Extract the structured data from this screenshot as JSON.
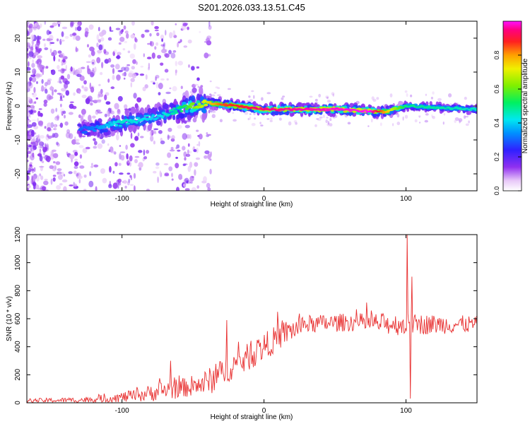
{
  "figure_title": "S201.2026.033.13.51.C45",
  "chart_data": [
    {
      "type": "heatmap",
      "title": "S201.2026.033.13.51.C45",
      "xlabel": "Height of straight line (km)",
      "ylabel": "Frequency (Hz)",
      "xlim": [
        -167,
        150
      ],
      "ylim": [
        -25,
        25
      ],
      "xticks": [
        -100,
        0,
        100
      ],
      "yticks": [
        -20,
        -10,
        0,
        10,
        20
      ],
      "grid": false,
      "colorbar": {
        "label": "Normalized spectral amplitude",
        "range": [
          0.0,
          1.0
        ],
        "ticks": [
          0.0,
          0.2,
          0.4,
          0.6,
          0.8
        ],
        "colormap": "rainbow (violet-blue-cyan-green-yellow-red-magenta)"
      },
      "ridge_frequency_hz": [
        {
          "x": -125,
          "f": -7
        },
        {
          "x": -100,
          "f": -5
        },
        {
          "x": -75,
          "f": -3
        },
        {
          "x": -60,
          "f": -1
        },
        {
          "x": -40,
          "f": 1
        },
        {
          "x": -20,
          "f": 0
        },
        {
          "x": 0,
          "f": -1
        },
        {
          "x": 50,
          "f": -1
        },
        {
          "x": 85,
          "f": -1.7
        },
        {
          "x": 100,
          "f": 0
        },
        {
          "x": 150,
          "f": -1
        }
      ],
      "ridge_amplitude": [
        {
          "x": -125,
          "a": 0.3
        },
        {
          "x": -100,
          "a": 0.45
        },
        {
          "x": -75,
          "a": 0.4
        },
        {
          "x": -60,
          "a": 0.5
        },
        {
          "x": -30,
          "a": 0.85
        },
        {
          "x": 0,
          "a": 0.95
        },
        {
          "x": 75,
          "a": 1.0
        },
        {
          "x": 100,
          "a": 0.5
        },
        {
          "x": 150,
          "a": 0.45
        }
      ]
    },
    {
      "type": "line",
      "title": "",
      "xlabel": "Height of straight line (km)",
      "ylabel": "SNR (10 * v/v)",
      "xlim": [
        -167,
        150
      ],
      "ylim": [
        0,
        1200
      ],
      "xticks": [
        -100,
        0,
        100
      ],
      "yticks": [
        0,
        200,
        400,
        600,
        800,
        1000,
        1200
      ],
      "color": "#e83030",
      "grid": false,
      "envelope": [
        {
          "x": -167,
          "base": 15,
          "spread": 30
        },
        {
          "x": -130,
          "base": 20,
          "spread": 40
        },
        {
          "x": -110,
          "base": 30,
          "spread": 60
        },
        {
          "x": -90,
          "base": 50,
          "spread": 90
        },
        {
          "x": -70,
          "base": 90,
          "spread": 150
        },
        {
          "x": -55,
          "base": 110,
          "spread": 140
        },
        {
          "x": -45,
          "base": 130,
          "spread": 170
        },
        {
          "x": -35,
          "base": 170,
          "spread": 200
        },
        {
          "x": -25,
          "base": 250,
          "spread": 200
        },
        {
          "x": -15,
          "base": 300,
          "spread": 200
        },
        {
          "x": 0,
          "base": 400,
          "spread": 200
        },
        {
          "x": 15,
          "base": 500,
          "spread": 180
        },
        {
          "x": 30,
          "base": 560,
          "spread": 130
        },
        {
          "x": 60,
          "base": 575,
          "spread": 130
        },
        {
          "x": 95,
          "base": 560,
          "spread": 160
        },
        {
          "x": 120,
          "base": 560,
          "spread": 140
        },
        {
          "x": 150,
          "base": 560,
          "spread": 120
        }
      ],
      "spikes": [
        {
          "x": -26,
          "y": 590
        },
        {
          "x": -66,
          "y": 300
        },
        {
          "x": 101,
          "y": 1200
        },
        {
          "x": 103,
          "y": 30
        },
        {
          "x": 104,
          "y": 900
        }
      ]
    }
  ]
}
